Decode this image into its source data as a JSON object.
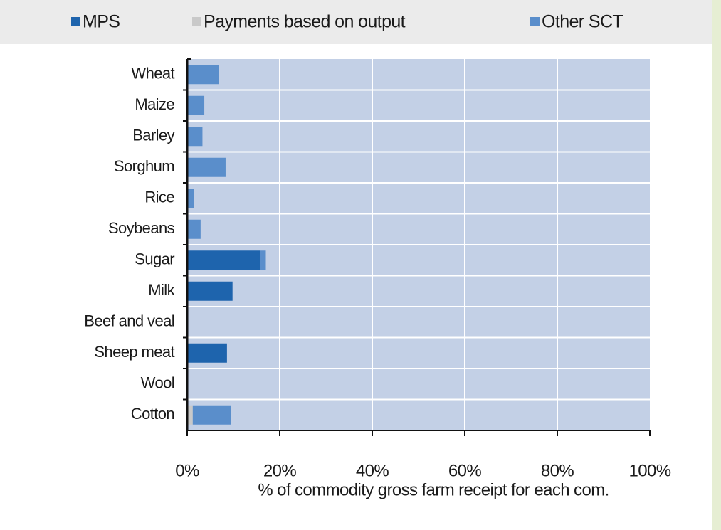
{
  "chart_data": {
    "type": "stacked_barh",
    "x_label": "% of commodity gross farm receipt for each com.",
    "categories": [
      "Wheat",
      "Maize",
      "Barley",
      "Sorghum",
      "Rice",
      "Soybeans",
      "Sugar",
      "Milk",
      "Beef and veal",
      "Sheep meat",
      "Wool",
      "Cotton"
    ],
    "series": [
      {
        "name": "MPS",
        "color": "#1e64ad",
        "values": [
          0,
          0,
          0,
          0,
          0,
          0,
          15.7,
          9.8,
          0,
          8.6,
          0,
          0
        ]
      },
      {
        "name": "Payments based on output",
        "color": "#c9c9c9",
        "values": [
          0,
          0,
          0,
          0,
          0,
          0,
          0,
          0,
          0,
          0,
          0,
          1.2
        ]
      },
      {
        "name": "Other SCT",
        "color": "#5a8ecb",
        "values": [
          6.8,
          3.7,
          3.3,
          8.3,
          1.5,
          2.9,
          1.3,
          0,
          0,
          0,
          0,
          8.3
        ]
      }
    ],
    "xlim": [
      0,
      100
    ],
    "xticks": [
      {
        "value": 0,
        "label": "0%"
      },
      {
        "value": 20,
        "label": "20%"
      },
      {
        "value": 40,
        "label": "40%"
      },
      {
        "value": 60,
        "label": "60%"
      },
      {
        "value": 80,
        "label": "80%"
      },
      {
        "value": 100,
        "label": "100%"
      }
    ],
    "grid": true,
    "legend": "top"
  }
}
